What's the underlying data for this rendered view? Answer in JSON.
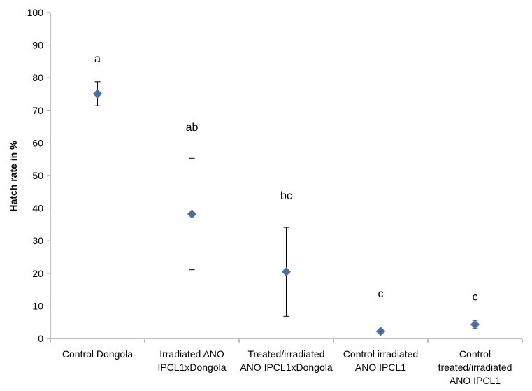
{
  "chart_data": {
    "type": "scatter",
    "xlabel": "",
    "ylabel": "Hatch rate in %",
    "ylim": [
      0,
      100
    ],
    "ytick_step": 10,
    "grid": false,
    "categories": [
      [
        "Control Dongola"
      ],
      [
        "Irradiated ANO",
        "IPCL1xDongola"
      ],
      [
        "Treated/irradiated",
        "ANO IPCL1xDongola"
      ],
      [
        "Control irradiated",
        "ANO IPCL1"
      ],
      [
        "Control",
        "treated/irradiated",
        "ANO IPCL1"
      ]
    ],
    "values": [
      75.1,
      38.2,
      20.5,
      2.2,
      4.3
    ],
    "error_low": [
      71.4,
      21.1,
      6.8,
      2.2,
      3.0
    ],
    "error_high": [
      78.8,
      55.3,
      34.1,
      2.2,
      5.6
    ],
    "significance_labels": [
      "a",
      "ab",
      "bc",
      "c",
      "c"
    ],
    "significance_label_y": [
      86,
      65,
      44,
      14,
      13
    ],
    "marker": "diamond",
    "colors": {
      "marker_fill": "#4F6D9A",
      "marker_stroke": "#5B7FB5",
      "axis": "#808080",
      "error_bar": "#000000"
    }
  }
}
